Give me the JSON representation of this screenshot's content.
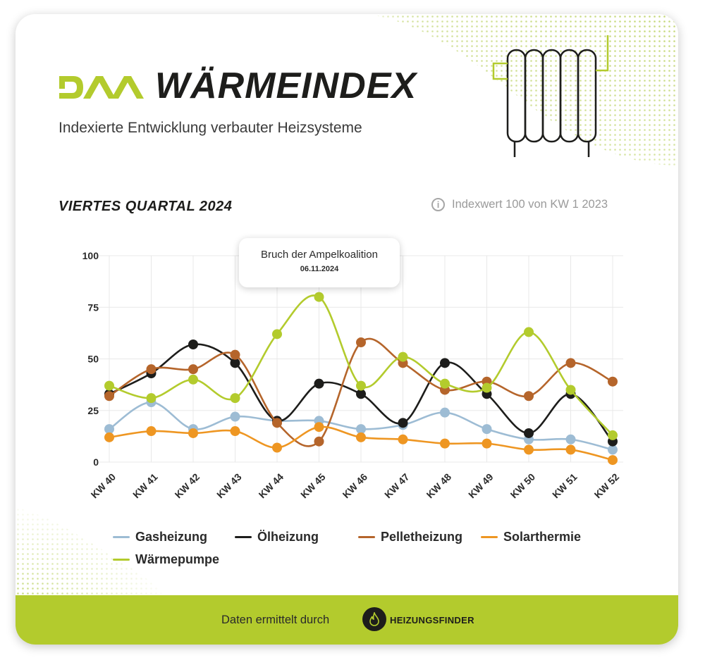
{
  "header": {
    "brand": "DAA",
    "title": "WÄRMEINDEX",
    "subtitle": "Indexierte Entwicklung verbauter Heizsysteme"
  },
  "section": {
    "heading": "VIERTES QUARTAL 2024",
    "info_icon": "info-icon",
    "info_text": "Indexwert 100 von KW 1 2023"
  },
  "annotation": {
    "title": "Bruch der Ampelkoalition",
    "date": "06.11.2024",
    "category": "KW 45"
  },
  "chart_data": {
    "type": "line",
    "categories": [
      "KW 40",
      "KW 41",
      "KW 42",
      "KW 43",
      "KW 44",
      "KW 45",
      "KW 46",
      "KW 47",
      "KW 48",
      "KW 49",
      "KW 50",
      "KW 51",
      "KW 52"
    ],
    "yticks": [
      "0",
      "25",
      "50",
      "75",
      "100"
    ],
    "ylim": [
      0,
      100
    ],
    "grid": true,
    "legend_position": "bottom",
    "series": [
      {
        "name": "Gasheizung",
        "color": "#9dbcd4",
        "values": [
          16,
          29,
          16,
          22,
          20,
          20,
          16,
          18,
          24,
          16,
          11,
          11,
          6
        ]
      },
      {
        "name": "Ölheizung",
        "color": "#1d1d1b",
        "values": [
          33,
          43,
          57,
          48,
          20,
          38,
          33,
          19,
          48,
          33,
          14,
          33,
          10
        ]
      },
      {
        "name": "Pelletheizung",
        "color": "#b5652b",
        "values": [
          32,
          45,
          45,
          52,
          19,
          10,
          58,
          48,
          35,
          39,
          32,
          48,
          39
        ]
      },
      {
        "name": "Solarthermie",
        "color": "#ee9622",
        "values": [
          12,
          15,
          14,
          15,
          7,
          17,
          12,
          11,
          9,
          9,
          6,
          6,
          1
        ]
      },
      {
        "name": "Wärmepumpe",
        "color": "#b3cb2d",
        "values": [
          37,
          31,
          40,
          31,
          62,
          80,
          37,
          51,
          38,
          36,
          63,
          35,
          13
        ]
      }
    ]
  },
  "footer": {
    "text": "Daten ermittelt durch",
    "partner": "HEIZUNGSFINDER",
    "partner_icon": "flame-icon"
  }
}
